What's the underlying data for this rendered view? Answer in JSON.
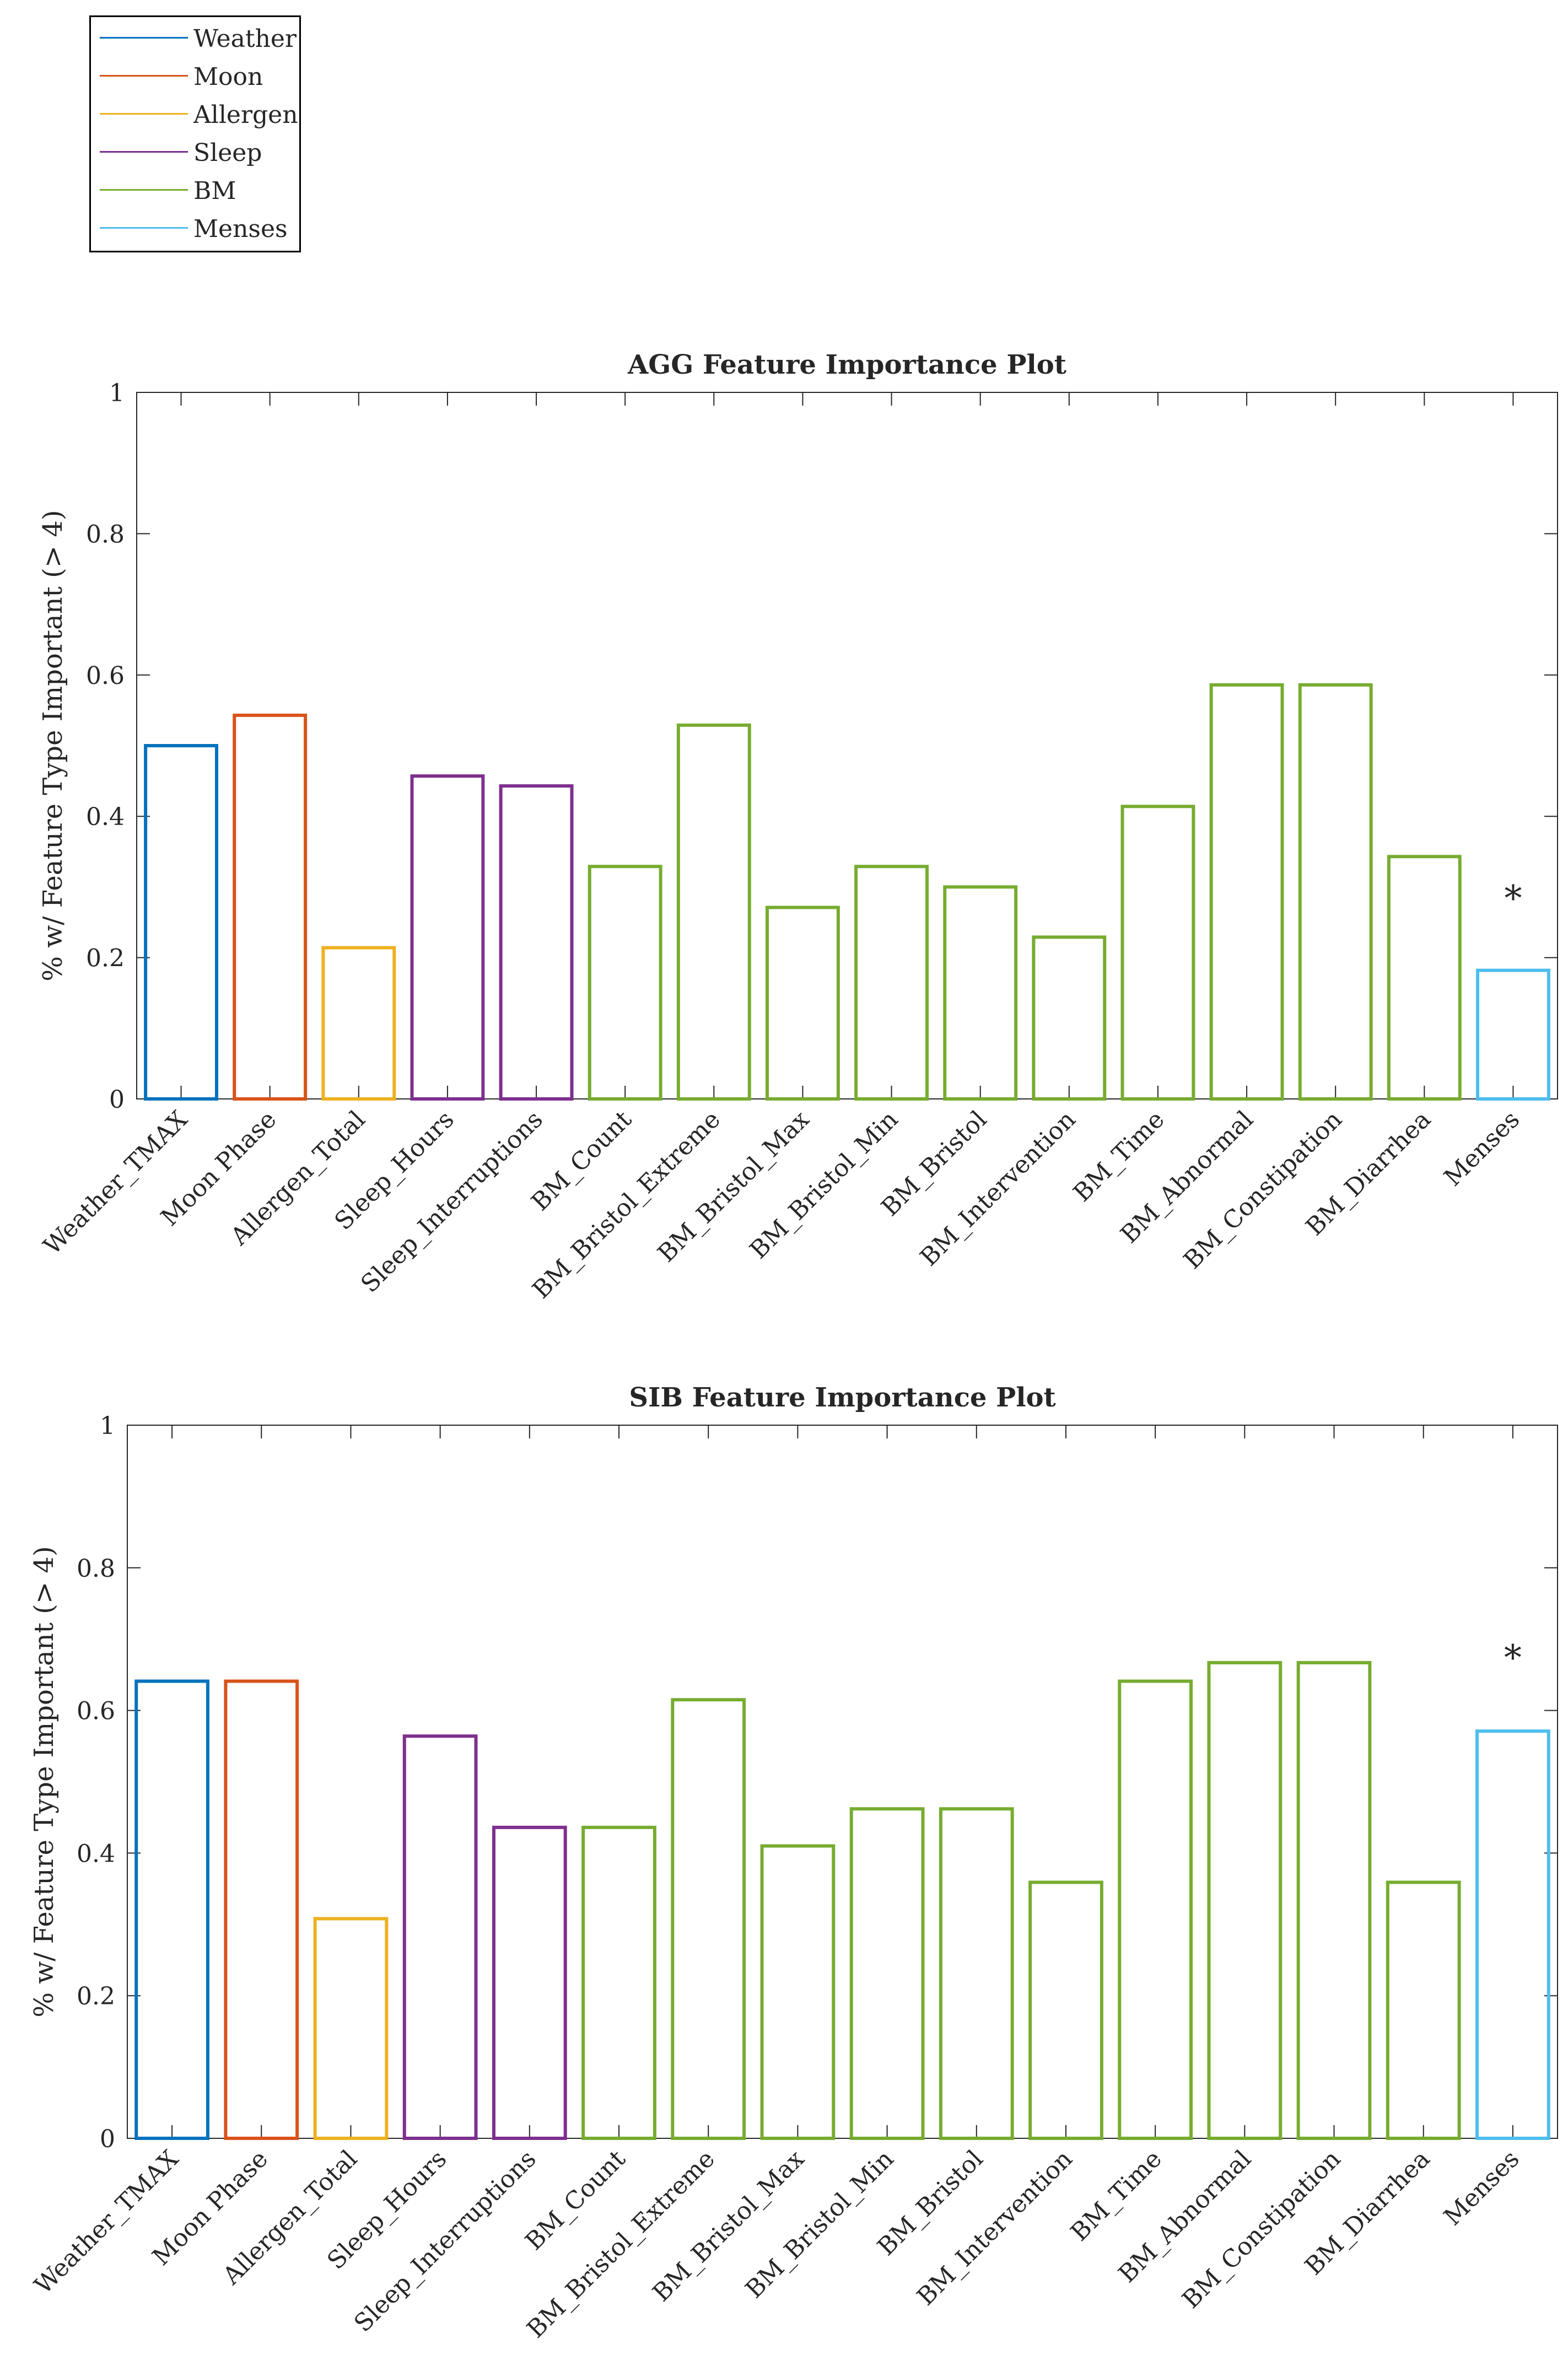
{
  "legend": {
    "items": [
      {
        "label": "Weather",
        "color": "#0072BD"
      },
      {
        "label": "Moon",
        "color": "#D95319"
      },
      {
        "label": "Allergen",
        "color": "#EDB120"
      },
      {
        "label": "Sleep",
        "color": "#7E2F8E"
      },
      {
        "label": "BM",
        "color": "#77AC30"
      },
      {
        "label": "Menses",
        "color": "#4DBEEE"
      }
    ]
  },
  "chart_data": [
    {
      "type": "bar",
      "title": "AGG Feature Importance Plot",
      "ylabel": "% w/ Feature Type Important (> 4)",
      "xlabel": "",
      "ylim": [
        0,
        1
      ],
      "yticks": [
        "0",
        "0.2",
        "0.4",
        "0.6",
        "0.8",
        "1"
      ],
      "categories": [
        "Weather_TMAX",
        "Moon Phase",
        "Allergen_Total",
        "Sleep_Hours",
        "Sleep_Interruptions",
        "BM_Count",
        "BM_Bristol_Extreme",
        "BM_Bristol_Max",
        "BM_Bristol_Min",
        "BM_Bristol",
        "BM_Intervention",
        "BM_Time",
        "BM_Abnormal",
        "BM_Constipation",
        "BM_Diarrhea",
        "Menses"
      ],
      "values": [
        0.5,
        0.543,
        0.214,
        0.457,
        0.443,
        0.329,
        0.529,
        0.271,
        0.329,
        0.3,
        0.229,
        0.414,
        0.586,
        0.586,
        0.343,
        0.182
      ],
      "groups": [
        "Weather",
        "Moon",
        "Allergen",
        "Sleep",
        "Sleep",
        "BM",
        "BM",
        "BM",
        "BM",
        "BM",
        "BM",
        "BM",
        "BM",
        "BM",
        "BM",
        "Menses"
      ],
      "annotations": [
        {
          "text": "*",
          "category": "Menses",
          "y": 0.29
        }
      ],
      "grid": false
    },
    {
      "type": "bar",
      "title": "SIB Feature Importance Plot",
      "ylabel": "% w/ Feature Type Important (> 4)",
      "xlabel": "",
      "ylim": [
        0,
        1
      ],
      "yticks": [
        "0",
        "0.2",
        "0.4",
        "0.6",
        "0.8",
        "1"
      ],
      "categories": [
        "Weather_TMAX",
        "Moon Phase",
        "Allergen_Total",
        "Sleep_Hours",
        "Sleep_Interruptions",
        "BM_Count",
        "BM_Bristol_Extreme",
        "BM_Bristol_Max",
        "BM_Bristol_Min",
        "BM_Bristol",
        "BM_Intervention",
        "BM_Time",
        "BM_Abnormal",
        "BM_Constipation",
        "BM_Diarrhea",
        "Menses"
      ],
      "values": [
        0.641,
        0.641,
        0.308,
        0.564,
        0.436,
        0.436,
        0.615,
        0.41,
        0.462,
        0.462,
        0.359,
        0.641,
        0.667,
        0.667,
        0.359,
        0.571
      ],
      "groups": [
        "Weather",
        "Moon",
        "Allergen",
        "Sleep",
        "Sleep",
        "BM",
        "BM",
        "BM",
        "BM",
        "BM",
        "BM",
        "BM",
        "BM",
        "BM",
        "BM",
        "Menses"
      ],
      "annotations": [
        {
          "text": "*",
          "category": "Menses",
          "y": 0.68
        }
      ],
      "grid": false
    }
  ]
}
